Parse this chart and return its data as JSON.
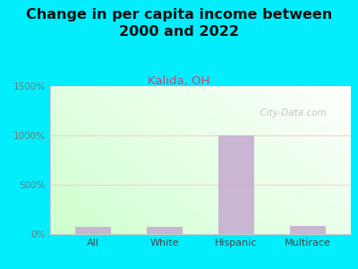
{
  "title": "Change in per capita income between\n2000 and 2022",
  "subtitle": "Kalida, OH",
  "categories": [
    "All",
    "White",
    "Hispanic",
    "Multirace"
  ],
  "values": [
    75,
    70,
    1000,
    85
  ],
  "bar_color": "#c4aad0",
  "title_fontsize": 11.5,
  "subtitle_fontsize": 9.5,
  "subtitle_color": "#cc4477",
  "background_outer": "#00eeff",
  "ylim": [
    0,
    1500
  ],
  "yticks": [
    0,
    500,
    1000,
    1500
  ],
  "ytick_labels": [
    "0%",
    "500%",
    "1000%",
    "1500%"
  ],
  "watermark": "  City-Data.com",
  "watermark_color": "#bbbbbb",
  "tick_color": "#777777",
  "axis_line_color": "#cccccc"
}
